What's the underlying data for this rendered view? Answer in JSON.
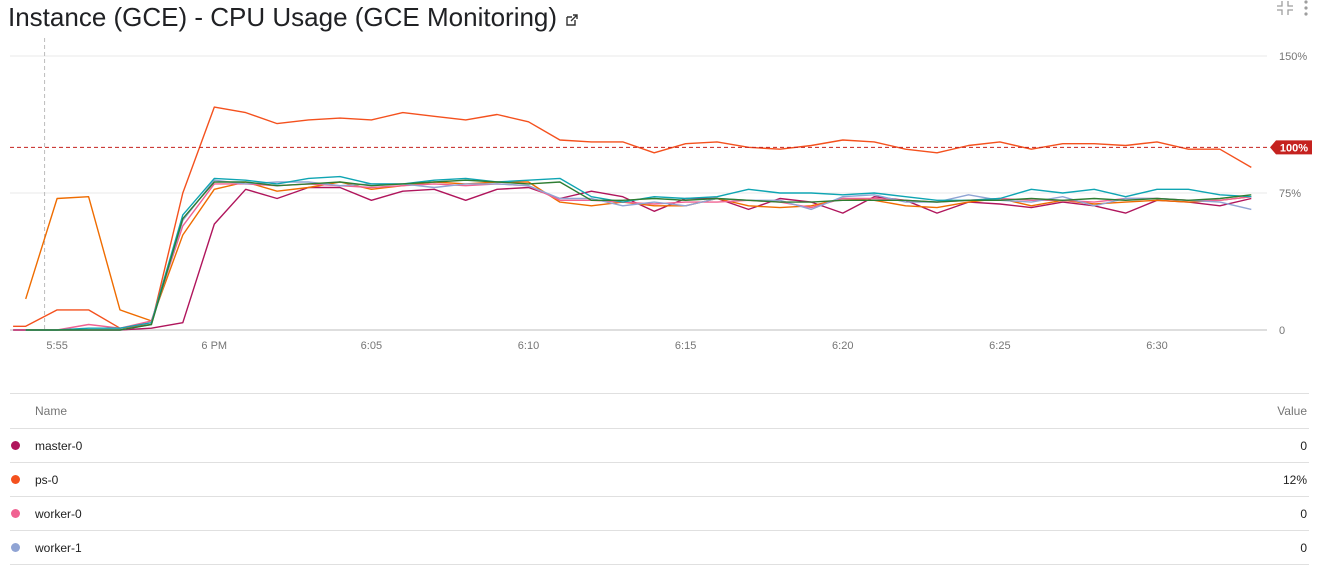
{
  "header": {
    "title": "Instance (GCE) - CPU Usage (GCE Monitoring)",
    "external_link_icon": "external-link-icon",
    "icons": [
      "collapse-icon",
      "more-vert-icon"
    ]
  },
  "chart_data": {
    "type": "line",
    "x_ticks": [
      "5:55",
      "6 PM",
      "6:05",
      "6:10",
      "6:15",
      "6:20",
      "6:25",
      "6:30"
    ],
    "x_tick_minutes": [
      -5,
      0,
      5,
      10,
      15,
      20,
      25,
      30
    ],
    "xlim": [
      -6.5,
      33.5
    ],
    "y_ticks": [
      "0",
      "75%",
      "150%"
    ],
    "y_tick_values": [
      0,
      75,
      150
    ],
    "ylim": [
      0,
      150
    ],
    "threshold": {
      "value": 100,
      "label": "100%",
      "color": "#c5221f"
    },
    "cursor_minute": -5.4,
    "grid": true,
    "series": [
      {
        "name": "master-0",
        "color": "#b0155c",
        "x": [
          -6.4,
          -6,
          -5,
          -4,
          -3,
          -2,
          -1,
          0,
          1,
          2,
          3,
          4,
          5,
          6,
          7,
          8,
          9,
          10,
          11,
          12,
          13,
          14,
          15,
          16,
          17,
          18,
          19,
          20,
          21,
          22,
          23,
          24,
          25,
          26,
          27,
          28,
          29,
          30,
          31,
          32,
          33
        ],
        "values": [
          0,
          0,
          0,
          0,
          0,
          1,
          4,
          58,
          77,
          72,
          78,
          78,
          71,
          76,
          77,
          71,
          77,
          78,
          72,
          76,
          73,
          65,
          72,
          72,
          66,
          72,
          70,
          64,
          73,
          71,
          64,
          70,
          69,
          67,
          70,
          68,
          64,
          71,
          70,
          68,
          72
        ]
      },
      {
        "name": "ps-0",
        "color": "#f4511e",
        "x": [
          -6.4,
          -6,
          -5,
          -4,
          -3,
          -2,
          -1,
          0,
          1,
          2,
          3,
          4,
          5,
          6,
          7,
          8,
          9,
          10,
          11,
          12,
          13,
          14,
          15,
          16,
          17,
          18,
          19,
          20,
          21,
          22,
          23,
          24,
          25,
          26,
          27,
          28,
          29,
          30,
          31,
          32,
          33
        ],
        "values": [
          2,
          2,
          11,
          11,
          1,
          3,
          75,
          122,
          119,
          113,
          115,
          116,
          115,
          119,
          117,
          115,
          118,
          114,
          104,
          103,
          103,
          97,
          102,
          103,
          100,
          99,
          101,
          104,
          103,
          99,
          97,
          101,
          103,
          99,
          102,
          102,
          101,
          103,
          99,
          99,
          89
        ]
      },
      {
        "name": "ps-0",
        "color": "#ef6c00",
        "x": [
          -6,
          -5,
          -4,
          -3,
          -2,
          -1,
          0,
          1,
          2,
          3,
          4,
          5,
          6,
          7,
          8,
          9,
          10,
          11,
          12,
          13,
          14,
          15,
          16,
          17,
          18,
          19,
          20,
          21,
          22,
          23,
          24,
          25,
          26,
          27,
          28,
          29,
          30,
          31,
          32,
          33
        ],
        "values": [
          17,
          72,
          73,
          11,
          5,
          52,
          77,
          81,
          76,
          78,
          81,
          77,
          79,
          81,
          80,
          81,
          81,
          70,
          68,
          70,
          68,
          68,
          72,
          68,
          67,
          68,
          72,
          71,
          68,
          67,
          70,
          72,
          68,
          71,
          69,
          70,
          71,
          70,
          71,
          73
        ]
      },
      {
        "name": "worker-0",
        "color": "#f06292",
        "x": [
          -6,
          -5,
          -4,
          -3,
          -2,
          -1,
          0,
          1,
          2,
          3,
          4,
          5,
          6,
          7,
          8,
          9,
          10,
          11,
          12,
          13,
          14,
          15,
          16,
          17,
          18,
          19,
          20,
          21,
          22,
          23,
          24,
          25,
          26,
          27,
          28,
          29,
          30,
          31,
          32,
          33
        ],
        "values": [
          0,
          0,
          3,
          1,
          5,
          57,
          80,
          80,
          79,
          80,
          79,
          78,
          79,
          80,
          79,
          80,
          79,
          71,
          71,
          70,
          69,
          70,
          70,
          71,
          70,
          67,
          72,
          72,
          71,
          70,
          71,
          72,
          71,
          71,
          70,
          72,
          72,
          71,
          71,
          73
        ]
      },
      {
        "name": "worker-1",
        "color": "#90a4d4",
        "x": [
          -6,
          -5,
          -4,
          -3,
          -2,
          -1,
          0,
          1,
          2,
          3,
          4,
          5,
          6,
          7,
          8,
          9,
          10,
          11,
          12,
          13,
          14,
          15,
          16,
          17,
          18,
          19,
          20,
          21,
          22,
          23,
          24,
          25,
          26,
          27,
          28,
          29,
          30,
          31,
          32,
          33
        ],
        "values": [
          0,
          0,
          0,
          0,
          3,
          60,
          82,
          80,
          81,
          81,
          79,
          80,
          80,
          78,
          80,
          80,
          79,
          72,
          72,
          68,
          70,
          68,
          72,
          71,
          71,
          66,
          73,
          74,
          70,
          70,
          74,
          71,
          70,
          73,
          68,
          72,
          72,
          71,
          70,
          66
        ]
      },
      {
        "name": "",
        "color": "#0fa5b3",
        "x": [
          -6,
          -5,
          -4,
          -3,
          -2,
          -1,
          0,
          1,
          2,
          3,
          4,
          5,
          6,
          7,
          8,
          9,
          10,
          11,
          12,
          13,
          14,
          15,
          16,
          17,
          18,
          19,
          20,
          21,
          22,
          23,
          24,
          25,
          26,
          27,
          28,
          29,
          30,
          31,
          32,
          33
        ],
        "values": [
          0,
          0,
          1,
          1,
          4,
          63,
          83,
          82,
          80,
          83,
          84,
          80,
          80,
          82,
          83,
          81,
          82,
          83,
          73,
          70,
          73,
          72,
          73,
          77,
          75,
          75,
          74,
          75,
          73,
          71,
          71,
          72,
          77,
          75,
          77,
          73,
          77,
          77,
          74,
          73
        ]
      },
      {
        "name": "",
        "color": "#2e7d32",
        "x": [
          -6,
          -5,
          -4,
          -3,
          -2,
          -1,
          0,
          1,
          2,
          3,
          4,
          5,
          6,
          7,
          8,
          9,
          10,
          11,
          12,
          13,
          14,
          15,
          16,
          17,
          18,
          19,
          20,
          21,
          22,
          23,
          24,
          25,
          26,
          27,
          28,
          29,
          30,
          31,
          32,
          33
        ],
        "values": [
          0,
          0,
          0,
          0,
          3,
          61,
          81,
          81,
          79,
          80,
          81,
          79,
          80,
          81,
          82,
          81,
          80,
          81,
          71,
          71,
          72,
          71,
          72,
          71,
          70,
          70,
          71,
          71,
          71,
          70,
          71,
          71,
          72,
          71,
          72,
          71,
          72,
          71,
          72,
          74
        ]
      }
    ]
  },
  "legend": {
    "name_header": "Name",
    "value_header": "Value",
    "rows": [
      {
        "name": "master-0",
        "value": "0",
        "color": "#b0155c"
      },
      {
        "name": "ps-0",
        "value": "12%",
        "color": "#f4511e"
      },
      {
        "name": "worker-0",
        "value": "0",
        "color": "#f06292"
      },
      {
        "name": "worker-1",
        "value": "0",
        "color": "#90a4d4"
      }
    ]
  }
}
